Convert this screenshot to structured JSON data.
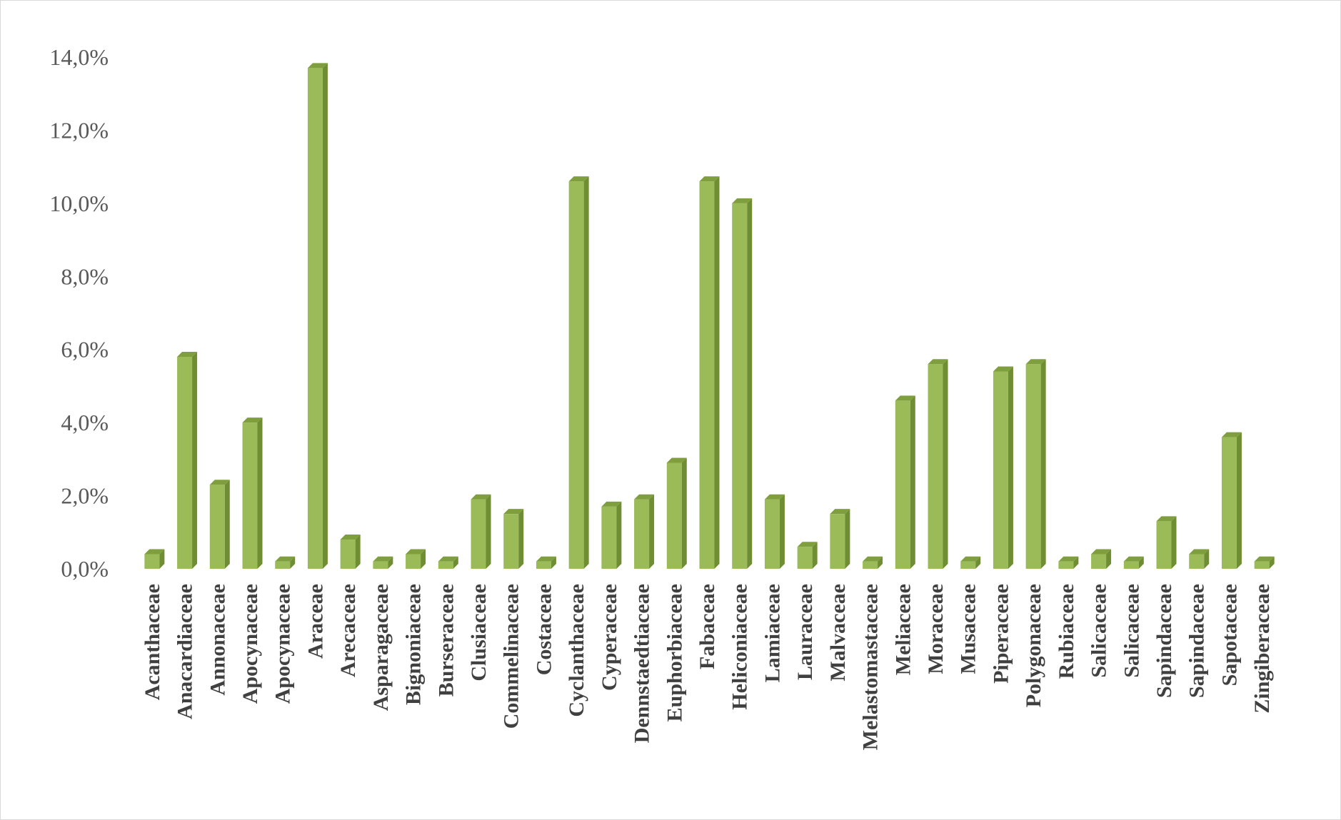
{
  "chart_data": {
    "type": "bar",
    "categories": [
      "Acanthaceae",
      "Anacardiaceae",
      "Annonaceae",
      "Apocynaceae",
      "Apocynaceae",
      "Araceae",
      "Arecaceae",
      "Asparagaceae",
      "Bignoniaceae",
      "Burseraceae",
      "Clusiaceae",
      "Commelinaceae",
      "Costaceae",
      "Cyclanthaceae",
      "Cyperaceae",
      "Dennstaedtiaceae",
      "Euphorbiaceae",
      "Fabaceae",
      "Heliconiaceae",
      "Lamiaceae",
      "Lauraceae",
      "Malvaceae",
      "Melastomastaceae",
      "Meliaceae",
      "Moraceae",
      "Musaceae",
      "Piperaceae",
      "Polygonaceae",
      "Rubiaceae",
      "Salicaceae",
      "Salicaceae",
      "Sapindaceae",
      "Sapindaceae",
      "Sapotaceae",
      "Zingiberaceae"
    ],
    "values": [
      0.4,
      5.8,
      2.3,
      4.0,
      0.2,
      13.7,
      0.8,
      0.2,
      0.4,
      0.2,
      1.9,
      1.5,
      0.2,
      10.6,
      1.7,
      1.9,
      2.9,
      10.6,
      10.0,
      1.9,
      0.6,
      1.5,
      0.2,
      4.6,
      5.6,
      0.2,
      5.4,
      5.6,
      0.2,
      0.4,
      0.2,
      1.3,
      0.4,
      3.6,
      0.2
    ],
    "yticks": [
      "0,0%",
      "2,0%",
      "4,0%",
      "6,0%",
      "8,0%",
      "10,0%",
      "12,0%",
      "14,0%"
    ],
    "ylim": [
      0,
      14
    ],
    "grid": false,
    "legend": "none",
    "title": "",
    "xlabel": "",
    "ylabel": "",
    "colors": {
      "bar_front": "#9bbb59",
      "bar_side": "#6f8d32",
      "bar_top": "#7f9f3e"
    }
  }
}
